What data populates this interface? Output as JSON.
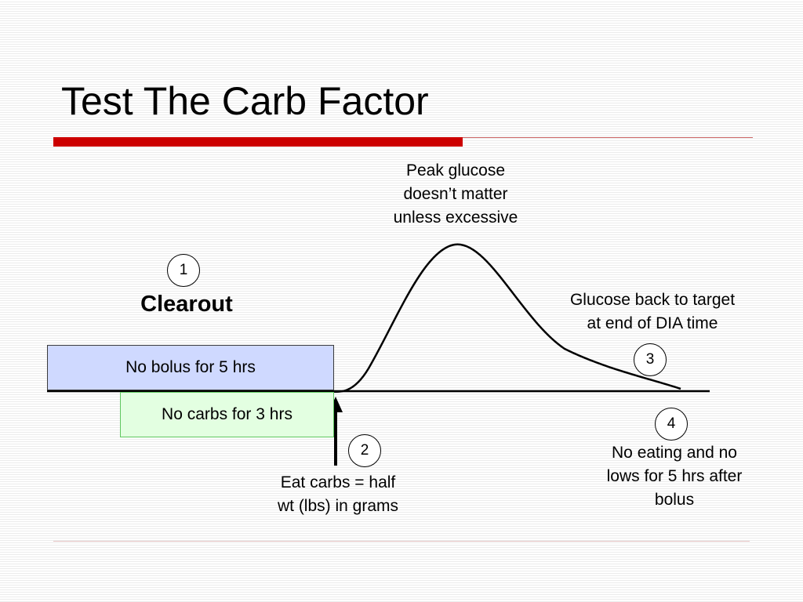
{
  "slide": {
    "title": "Test The Carb Factor"
  },
  "diagram": {
    "heading": "Clearout",
    "boxes": {
      "bolus": "No bolus for 5 hrs",
      "carbs": "No carbs for 3 hrs"
    },
    "steps": [
      {
        "number": "1"
      },
      {
        "number": "2",
        "lines": [
          "Eat carbs = half",
          "wt (lbs) in grams"
        ]
      },
      {
        "number": "3",
        "lines": [
          "Glucose back to target",
          "at end of DIA time"
        ]
      },
      {
        "number": "4",
        "lines": [
          "No eating and no",
          "lows for 5 hrs after",
          "bolus"
        ]
      }
    ],
    "peak_note": [
      "Peak glucose",
      "doesn’t matter",
      "unless excessive"
    ]
  }
}
